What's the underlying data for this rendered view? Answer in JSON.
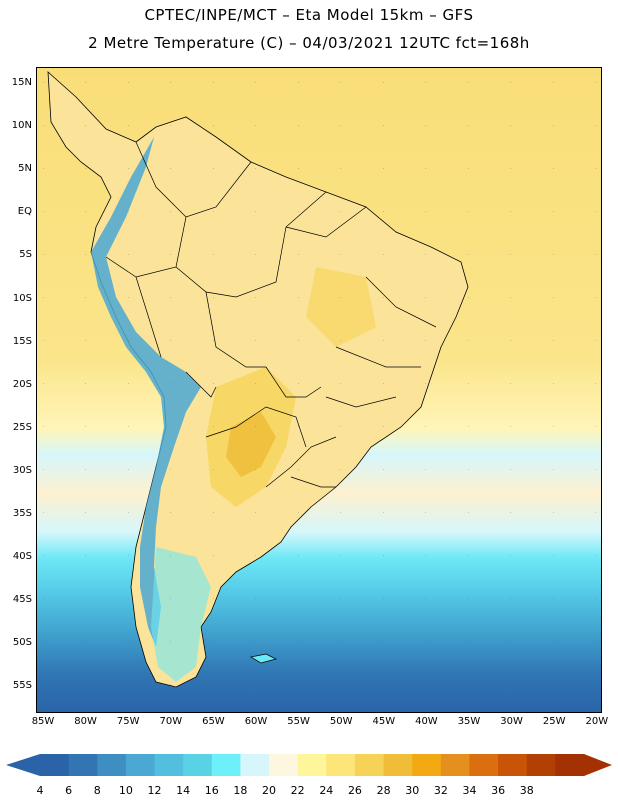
{
  "title": {
    "line1": "CPTEC/INPE/MCT –  Eta Model 15km – GFS",
    "line2": "2 Metre Temperature (C) – 04/03/2021 12UTC fct=168h"
  },
  "lat_labels": [
    "15N",
    "10N",
    "5N",
    "EQ",
    "5S",
    "10S",
    "15S",
    "20S",
    "25S",
    "30S",
    "35S",
    "40S",
    "45S",
    "50S",
    "55S"
  ],
  "lon_labels": [
    "85W",
    "80W",
    "75W",
    "70W",
    "65W",
    "60W",
    "55W",
    "50W",
    "45W",
    "40W",
    "35W",
    "30W",
    "25W",
    "20W"
  ],
  "colorbar": {
    "labels": [
      "4",
      "6",
      "8",
      "10",
      "12",
      "14",
      "16",
      "18",
      "20",
      "22",
      "24",
      "26",
      "28",
      "30",
      "32",
      "34",
      "36",
      "38"
    ],
    "colors": [
      "#2a63a8",
      "#3375b3",
      "#3f8ec2",
      "#4aa8d3",
      "#52bfdf",
      "#5ad2e6",
      "#6ef0fb",
      "#d6f6fb",
      "#fdf7df",
      "#fff69c",
      "#fde57a",
      "#f6d357",
      "#efbd38",
      "#f3a912",
      "#e48f1e",
      "#db6e0e",
      "#c95408",
      "#b23f04",
      "#a33104"
    ]
  },
  "map": {
    "ocean_color": "#fde57a",
    "land_color": "#fbe586",
    "icons": [
      "coastline-icon",
      "country-border-icon"
    ]
  }
}
